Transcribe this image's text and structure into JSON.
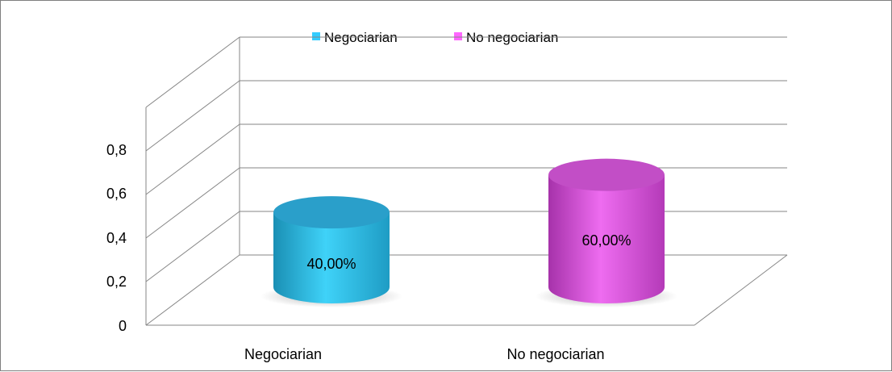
{
  "chart_data": {
    "type": "bar",
    "style": "3d-cylinder",
    "categories": [
      "Negociarian",
      "No negociarian"
    ],
    "series": [
      {
        "name": "Negociarian",
        "color": "#29b6dc",
        "values": [
          0.4,
          null
        ],
        "data_labels": [
          "40,00%",
          ""
        ]
      },
      {
        "name": "No negociarian",
        "color": "#d04ad4",
        "values": [
          null,
          0.6
        ],
        "data_labels": [
          "",
          "60,00%"
        ]
      }
    ],
    "y_ticks": [
      "0",
      "0,2",
      "0,4",
      "0,6",
      "0,8"
    ],
    "ylim": [
      0,
      0.8
    ],
    "grid": true,
    "legend_position": "top"
  }
}
